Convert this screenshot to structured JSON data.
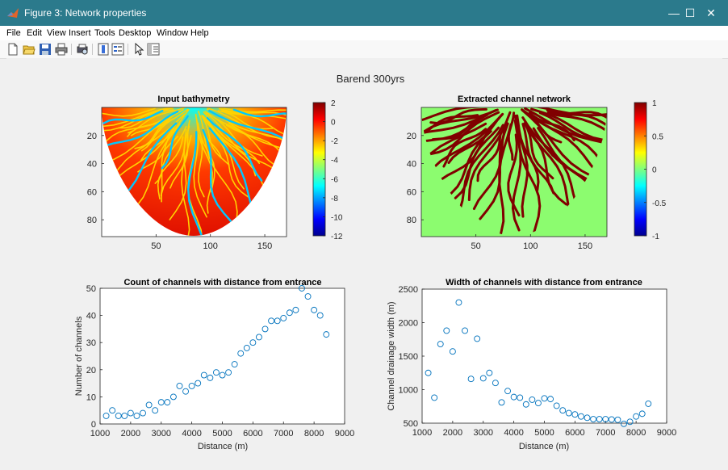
{
  "window": {
    "title": "Figure 3: Network properties",
    "controls": {
      "minimize": "—",
      "maximize": "☐",
      "close": "✕"
    }
  },
  "menu": [
    "File",
    "Edit",
    "View",
    "Insert",
    "Tools",
    "Desktop",
    "Window",
    "Help"
  ],
  "toolbar_icons": [
    "new-figure-icon",
    "open-file-icon",
    "save-icon",
    "print-icon",
    "print-preview-icon",
    "colorbar-icon",
    "legend-icon",
    "pointer-icon",
    "property-inspector-icon"
  ],
  "figure": {
    "suptitle": "Barend 300yrs",
    "colors": {
      "axis": "#262626",
      "marker": "#0072bd",
      "channel": "#800000",
      "background_green": "#8cfc6f"
    }
  },
  "chart_data": [
    {
      "type": "heatmap",
      "title": "Input bathymetry",
      "xticks": [
        "50",
        "100",
        "150"
      ],
      "xtick_values": [
        50,
        100,
        150
      ],
      "yticks": [
        "20",
        "40",
        "60",
        "80"
      ],
      "ytick_values": [
        20,
        40,
        60,
        80
      ],
      "xlim": [
        0,
        170
      ],
      "ylim": [
        0,
        92
      ],
      "colorbar": {
        "ticks": [
          "2",
          "0",
          "-2",
          "-4",
          "-6",
          "-8",
          "-10",
          "-12"
        ],
        "tick_values": [
          2,
          0,
          -2,
          -4,
          -6,
          -8,
          -10,
          -12
        ],
        "range": [
          -12,
          2
        ],
        "colormap": "jet"
      }
    },
    {
      "type": "heatmap",
      "title": "Extracted channel network",
      "xticks": [
        "50",
        "100",
        "150"
      ],
      "xtick_values": [
        50,
        100,
        150
      ],
      "yticks": [
        "20",
        "40",
        "60",
        "80"
      ],
      "ytick_values": [
        20,
        40,
        60,
        80
      ],
      "xlim": [
        0,
        170
      ],
      "ylim": [
        0,
        92
      ],
      "colorbar": {
        "ticks": [
          "1",
          "0.5",
          "0",
          "-0.5",
          "-1"
        ],
        "tick_values": [
          1,
          0.5,
          0,
          -0.5,
          -1
        ],
        "range": [
          -1,
          1
        ],
        "colormap": "jet"
      }
    },
    {
      "type": "scatter",
      "title": "Count of channels with distance from entrance",
      "xlabel": "Distance (m)",
      "ylabel": "Number of channels",
      "xlim": [
        1000,
        9000
      ],
      "ylim": [
        0,
        50
      ],
      "xticks": [
        "1000",
        "2000",
        "3000",
        "4000",
        "5000",
        "6000",
        "7000",
        "8000",
        "9000"
      ],
      "yticks": [
        "0",
        "10",
        "20",
        "30",
        "40",
        "50"
      ],
      "x": [
        1200,
        1400,
        1600,
        1800,
        2000,
        2200,
        2400,
        2600,
        2800,
        3000,
        3200,
        3400,
        3600,
        3800,
        4000,
        4200,
        4400,
        4600,
        4800,
        5000,
        5200,
        5400,
        5600,
        5800,
        6000,
        6200,
        6400,
        6600,
        6800,
        7000,
        7200,
        7400,
        7600,
        7800,
        8000,
        8200,
        8400
      ],
      "y": [
        3,
        5,
        3,
        3,
        4,
        3,
        4,
        7,
        5,
        8,
        8,
        10,
        14,
        12,
        14,
        15,
        18,
        17,
        19,
        18,
        19,
        22,
        26,
        28,
        30,
        32,
        35,
        38,
        38,
        39,
        41,
        42,
        50,
        47,
        42,
        40,
        33
      ]
    },
    {
      "type": "scatter",
      "title": "Width of channels with distance from entrance",
      "xlabel": "Distance (m)",
      "ylabel": "Channel drainage width (m)",
      "xlim": [
        1000,
        9000
      ],
      "ylim": [
        500,
        2500
      ],
      "xticks": [
        "1000",
        "2000",
        "3000",
        "4000",
        "5000",
        "6000",
        "7000",
        "8000",
        "9000"
      ],
      "yticks": [
        "500",
        "1000",
        "1500",
        "2000",
        "2500"
      ],
      "x": [
        1200,
        1400,
        1600,
        1800,
        2000,
        2200,
        2400,
        2600,
        2800,
        3000,
        3200,
        3400,
        3600,
        3800,
        4000,
        4200,
        4400,
        4600,
        4800,
        5000,
        5200,
        5400,
        5600,
        5800,
        6000,
        6200,
        6400,
        6600,
        6800,
        7000,
        7200,
        7400,
        7600,
        7800,
        8000,
        8200,
        8400
      ],
      "y": [
        1250,
        880,
        1680,
        1880,
        1570,
        2300,
        1880,
        1160,
        1760,
        1170,
        1250,
        1100,
        810,
        980,
        890,
        880,
        780,
        850,
        800,
        870,
        860,
        760,
        690,
        650,
        630,
        600,
        580,
        560,
        560,
        560,
        555,
        550,
        490,
        520,
        600,
        640,
        790
      ]
    }
  ]
}
